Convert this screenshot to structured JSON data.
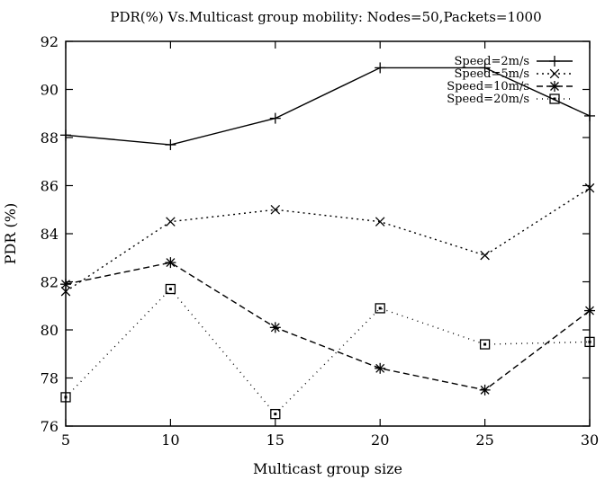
{
  "chart_data": {
    "type": "line",
    "title": "PDR(%) Vs.Multicast group mobility: Nodes=50,Packets=1000",
    "xlabel": "Multicast group size",
    "ylabel": "PDR (%)",
    "x": [
      5,
      10,
      15,
      20,
      25,
      30
    ],
    "xlim": [
      5,
      30
    ],
    "ylim": [
      76,
      92
    ],
    "xticks": [
      5,
      10,
      15,
      20,
      25,
      30
    ],
    "yticks": [
      76,
      78,
      80,
      82,
      84,
      86,
      88,
      90,
      92
    ],
    "legend_position": "top-right",
    "grid": false,
    "series": [
      {
        "name": "Speed=2m/s",
        "values": [
          88.1,
          87.7,
          88.8,
          90.9,
          90.9,
          88.9
        ],
        "marker": "plus",
        "dash": "solid"
      },
      {
        "name": "Speed=5m/s",
        "values": [
          81.6,
          84.5,
          85.0,
          84.5,
          83.1,
          85.9
        ],
        "marker": "x",
        "dash": "dot"
      },
      {
        "name": "Speed=10m/s",
        "values": [
          81.9,
          82.8,
          80.1,
          78.4,
          77.5,
          80.8
        ],
        "marker": "star",
        "dash": "dash"
      },
      {
        "name": "Speed=20m/s",
        "values": [
          77.2,
          81.7,
          76.5,
          80.9,
          79.4,
          79.5
        ],
        "marker": "square",
        "dash": "dotted"
      }
    ]
  }
}
